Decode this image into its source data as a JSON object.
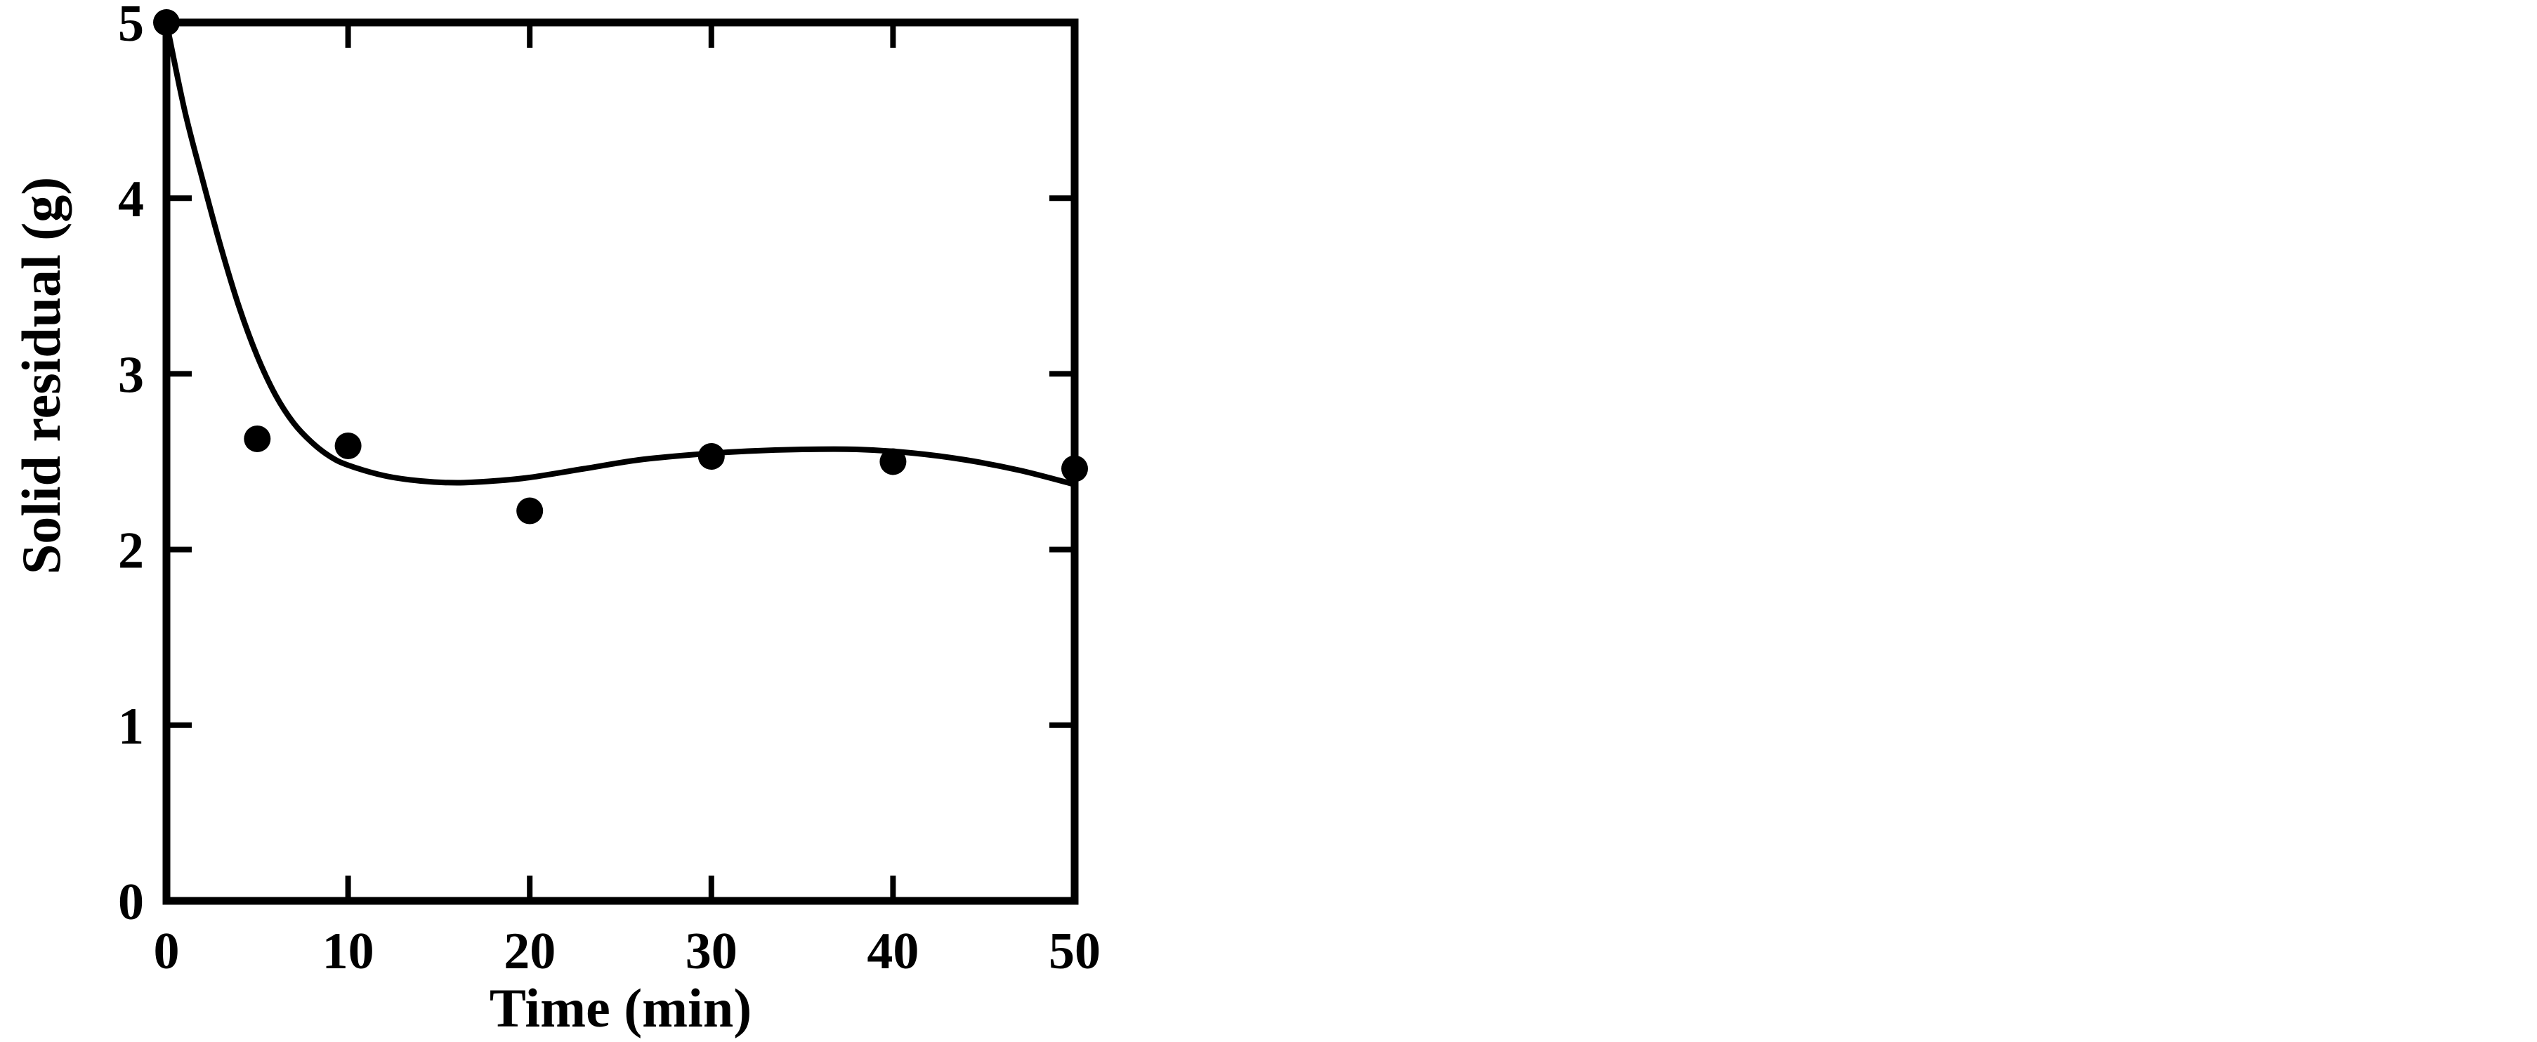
{
  "page": {
    "background_color": "#ffffff",
    "foreground_color": "#000000"
  },
  "chart_data": {
    "type": "scatter",
    "title": "",
    "xlabel": "Time (min)",
    "ylabel": "Solid residual (g)",
    "xlim": [
      0,
      50
    ],
    "ylim": [
      0,
      5
    ],
    "xticks": [
      0,
      10,
      20,
      30,
      40,
      50
    ],
    "yticks": [
      0,
      1,
      2,
      3,
      4,
      5
    ],
    "grid": false,
    "legend": "none",
    "frame": "box-with-inward-mirrored-ticks",
    "series": [
      {
        "name": "observed-data",
        "type": "scatter",
        "marker": "filled-circle",
        "color": "#000000",
        "x": [
          0,
          5,
          10,
          20,
          30,
          40,
          50
        ],
        "y": [
          5.0,
          2.63,
          2.59,
          2.22,
          2.53,
          2.5,
          2.46
        ]
      },
      {
        "name": "fitted-curve",
        "type": "line",
        "color": "#000000",
        "x": [
          0,
          1,
          2,
          3,
          4,
          5,
          6,
          7,
          8,
          9,
          10,
          12,
          14,
          16,
          18,
          20,
          23,
          26,
          29,
          32,
          35,
          38,
          41,
          44,
          47,
          50
        ],
        "y": [
          5.0,
          4.5,
          4.1,
          3.72,
          3.38,
          3.1,
          2.88,
          2.72,
          2.61,
          2.53,
          2.48,
          2.42,
          2.39,
          2.38,
          2.39,
          2.41,
          2.46,
          2.51,
          2.54,
          2.56,
          2.57,
          2.57,
          2.55,
          2.51,
          2.45,
          2.37
        ]
      }
    ]
  }
}
